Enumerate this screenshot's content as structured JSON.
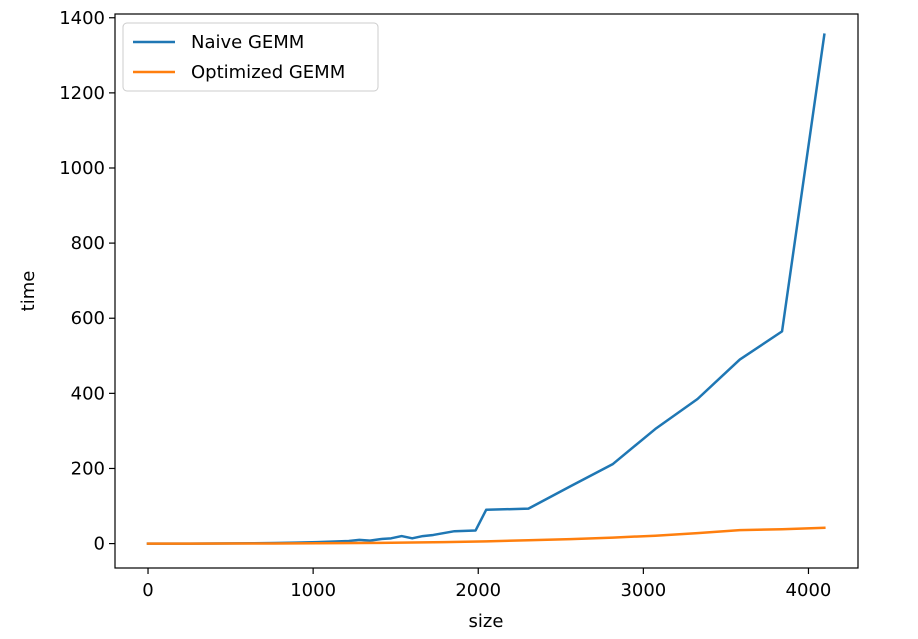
{
  "chart_data": {
    "type": "line",
    "title": "",
    "xlabel": "size",
    "ylabel": "time",
    "xlim": [
      -200,
      4300
    ],
    "ylim": [
      -65,
      1410
    ],
    "xticks": [
      0,
      1000,
      2000,
      3000,
      4000
    ],
    "yticks": [
      0,
      200,
      400,
      600,
      800,
      1000,
      1200,
      1400
    ],
    "grid": false,
    "legend": "top-left",
    "series": [
      {
        "name": "Naive GEMM",
        "color": "#1f77b4",
        "x": [
          0,
          128,
          256,
          384,
          512,
          640,
          768,
          896,
          1024,
          1088,
          1152,
          1216,
          1280,
          1344,
          1408,
          1472,
          1536,
          1600,
          1664,
          1728,
          1792,
          1856,
          1920,
          1984,
          2048,
          2304,
          2560,
          2816,
          3072,
          3328,
          3584,
          3840,
          4096
        ],
        "y": [
          0,
          0,
          0,
          0.1,
          0.5,
          1,
          1.5,
          2.5,
          4,
          5,
          6,
          7,
          10,
          8,
          12,
          14,
          20,
          14,
          20,
          23,
          28,
          33,
          34,
          35,
          90,
          93,
          153,
          212,
          305,
          385,
          490,
          565,
          1355
        ]
      },
      {
        "name": "Optimized GEMM",
        "color": "#ff7f0e",
        "x": [
          0,
          128,
          256,
          512,
          768,
          1024,
          1280,
          1536,
          1792,
          1920,
          2048,
          2304,
          2560,
          2816,
          3072,
          3328,
          3584,
          3840,
          4096
        ],
        "y": [
          0,
          0,
          0,
          0.1,
          0.3,
          0.8,
          1.5,
          2.5,
          4,
          5,
          6,
          9,
          12,
          16,
          21,
          28,
          36,
          38,
          42
        ]
      }
    ]
  }
}
